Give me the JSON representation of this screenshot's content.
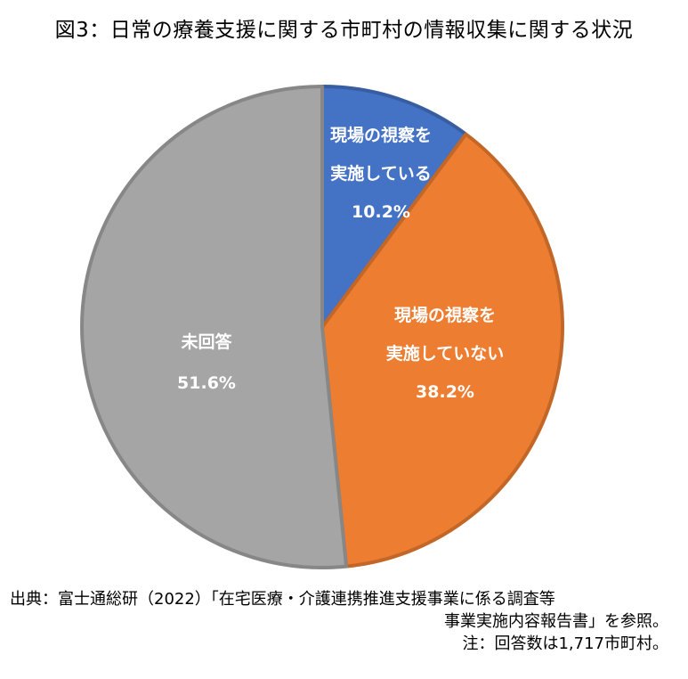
{
  "title": "図3：日常の療養支援に関する市町村の情報収集に関する状況",
  "chart_data": {
    "type": "pie",
    "title": "図3：日常の療養支援に関する市町村の情報収集に関する状況",
    "start_angle_deg": 0,
    "direction": "clockwise",
    "slices": [
      {
        "label_lines": [
          "現場の視察を",
          "実施している"
        ],
        "value": 10.2,
        "value_label": "10.2%",
        "color": "#4472C4"
      },
      {
        "label_lines": [
          "現場の視察を",
          "実施していない"
        ],
        "value": 38.2,
        "value_label": "38.2%",
        "color": "#ED7D31"
      },
      {
        "label_lines": [
          "未回答"
        ],
        "value": 51.6,
        "value_label": "51.6%",
        "color": "#A5A5A5"
      }
    ]
  },
  "source": {
    "line1": "出典：富士通総研（2022）「在宅医療・介護連携推進支援事業に係る調査等",
    "line2": "事業実施内容報告書」を参照。",
    "line3": "注：回答数は1,717市町村。"
  }
}
